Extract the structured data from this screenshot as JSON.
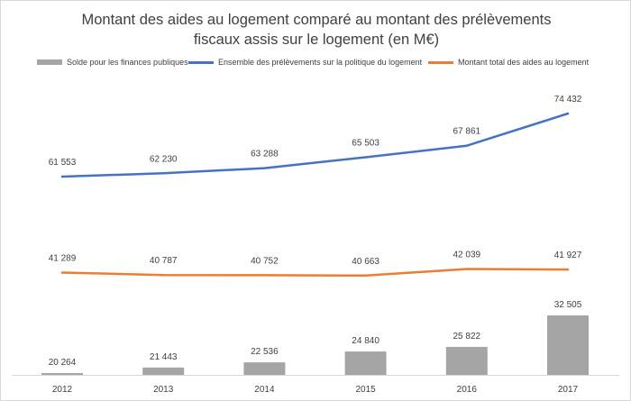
{
  "chart_data": {
    "type": "bar+line",
    "title_lines": [
      "Montant des aides au logement comparé au montant des prélèvements",
      "fiscaux assis sur le logement (en M€)"
    ],
    "categories": [
      "2012",
      "2013",
      "2014",
      "2015",
      "2016",
      "2017"
    ],
    "series": [
      {
        "name": "Solde pour les finances publiques",
        "kind": "bar",
        "color": "#a5a5a5",
        "values": [
          20264,
          21443,
          22536,
          24840,
          25822,
          32505
        ],
        "labels": [
          "20 264",
          "21 443",
          "22 536",
          "24 840",
          "25 822",
          "32 505"
        ]
      },
      {
        "name": "Ensemble des prélèvements sur la politique du logement",
        "kind": "line",
        "color": "#4472c4",
        "values": [
          61553,
          62230,
          63288,
          65503,
          67861,
          74432
        ],
        "labels": [
          "61 553",
          "62 230",
          "63 288",
          "65 503",
          "67 861",
          "74 432"
        ]
      },
      {
        "name": "Montant total des aides au logement",
        "kind": "line",
        "color": "#ed7d31",
        "values": [
          41289,
          40787,
          40752,
          40663,
          42039,
          41927
        ],
        "labels": [
          "41 289",
          "40 787",
          "40 752",
          "40 663",
          "42 039",
          "41 927"
        ]
      }
    ],
    "legend_position": "top",
    "grid": false
  }
}
